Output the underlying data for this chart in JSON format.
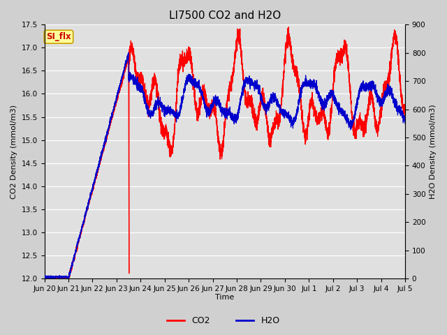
{
  "title": "LI7500 CO2 and H2O",
  "xlabel": "Time",
  "ylabel_left": "CO2 Density (mmol/m3)",
  "ylabel_right": "H2O Density (mmol/m3)",
  "ylim_left": [
    12.0,
    17.5
  ],
  "ylim_right": [
    0,
    900
  ],
  "yticks_left": [
    12.0,
    12.5,
    13.0,
    13.5,
    14.0,
    14.5,
    15.0,
    15.5,
    16.0,
    16.5,
    17.0,
    17.5
  ],
  "yticks_right": [
    0,
    100,
    200,
    300,
    400,
    500,
    600,
    700,
    800,
    900
  ],
  "fig_bg_color": "#d0d0d0",
  "plot_bg_color": "#e0e0e0",
  "grid_color": "#ffffff",
  "co2_color": "#ff0000",
  "h2o_color": "#0000cc",
  "annotation_text": "SI_flx",
  "annotation_bg": "#ffff99",
  "annotation_edge": "#c8a000",
  "title_fontsize": 11,
  "label_fontsize": 8,
  "tick_fontsize": 7.5,
  "linewidth": 0.9,
  "xtick_labels": [
    "Jun 20",
    "Jun 21",
    "Jun 22",
    "Jun 23",
    "Jun 24",
    "Jun 25",
    "Jun 26",
    "Jun 27",
    "Jun 28",
    "Jun 29",
    "Jun 30",
    "Jul 1",
    "Jul 2",
    "Jul 3",
    "Jul 4",
    "Jul 5"
  ]
}
